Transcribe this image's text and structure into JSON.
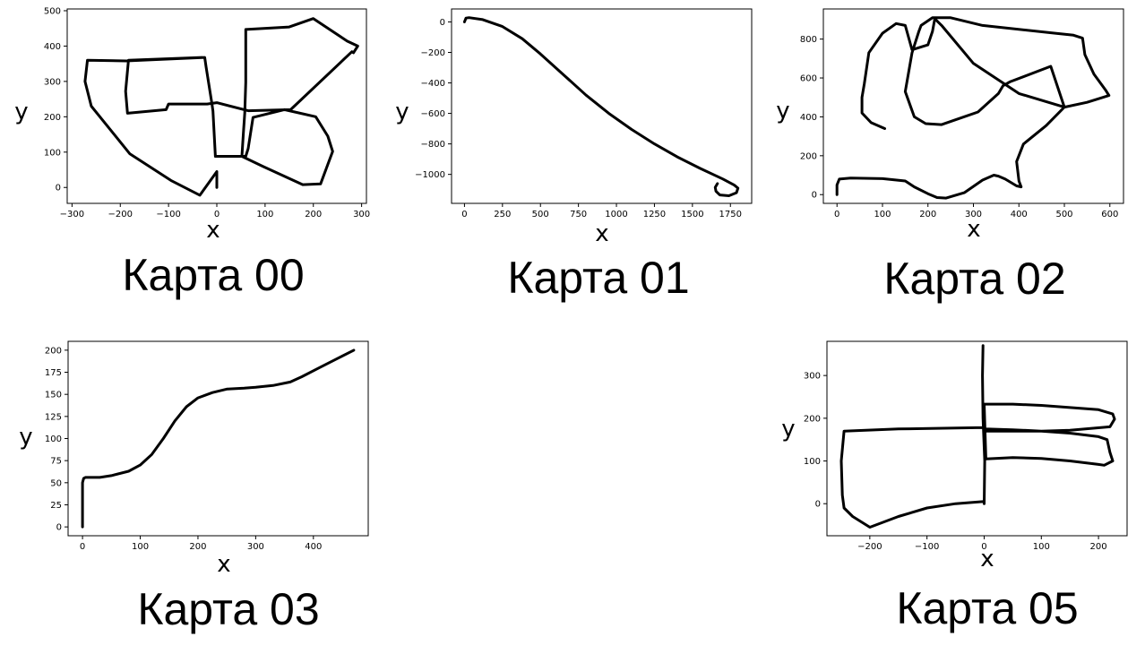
{
  "figure": {
    "background": "#ffffff",
    "line_color": "#000000"
  },
  "chart_data": [
    {
      "type": "line",
      "title": "Карта 00",
      "xlabel": "x",
      "ylabel": "y",
      "xlim": [
        -310,
        310
      ],
      "ylim": [
        -45,
        505
      ],
      "xticks": [
        -300,
        -200,
        -100,
        0,
        100,
        200,
        300
      ],
      "xtick_labels": [
        "−300",
        "−200",
        "−100",
        "0",
        "100",
        "200",
        "300"
      ],
      "yticks": [
        0,
        100,
        200,
        300,
        400,
        500
      ],
      "ytick_labels": [
        "0",
        "100",
        "200",
        "300",
        "400",
        "500"
      ],
      "grid": false,
      "series": [
        {
          "x": [
            0,
            0,
            -35,
            -95,
            -180,
            -260,
            -273,
            -268,
            -188,
            -25,
            -22,
            -10,
            -8,
            -3,
            60,
            65,
            75,
            140,
            205,
            230,
            240,
            215,
            178,
            95,
            52,
            55,
            58,
            60,
            60,
            150,
            200,
            270,
            292,
            283,
            280,
            153,
            65,
            0,
            0,
            -20,
            -100,
            -105,
            -185,
            -189,
            -183,
            -30
          ],
          "y": [
            0,
            45,
            -22,
            20,
            95,
            230,
            300,
            360,
            358,
            368,
            340,
            236,
            216,
            88,
            88,
            110,
            198,
            220,
            200,
            145,
            102,
            10,
            8,
            60,
            88,
            152,
            211,
            297,
            447,
            454,
            478,
            414,
            400,
            381,
            384,
            220,
            217,
            240,
            240,
            236,
            236,
            220,
            210,
            272,
            360,
            368
          ]
        }
      ]
    },
    {
      "type": "line",
      "title": "Карта 01",
      "xlabel": "x",
      "ylabel": "y",
      "xlim": [
        -85,
        1890
      ],
      "ylim": [
        -1190,
        85
      ],
      "xticks": [
        0,
        250,
        500,
        750,
        1000,
        1250,
        1500,
        1750
      ],
      "xtick_labels": [
        "0",
        "250",
        "500",
        "750",
        "1000",
        "1250",
        "1500",
        "1750"
      ],
      "yticks": [
        -1000,
        -800,
        -600,
        -400,
        -200,
        0
      ],
      "ytick_labels": [
        "−1000",
        "−800",
        "−600",
        "−400",
        "−200",
        "0"
      ],
      "grid": false,
      "series": [
        {
          "x": [
            0,
            10,
            30,
            120,
            250,
            380,
            500,
            650,
            800,
            950,
            1100,
            1250,
            1400,
            1550,
            1700,
            1775,
            1800,
            1790,
            1740,
            1680,
            1655,
            1650,
            1665
          ],
          "y": [
            0,
            25,
            28,
            15,
            -30,
            -110,
            -210,
            -345,
            -480,
            -600,
            -705,
            -800,
            -885,
            -960,
            -1030,
            -1070,
            -1090,
            -1120,
            -1140,
            -1135,
            -1110,
            -1085,
            -1060
          ]
        }
      ]
    },
    {
      "type": "line",
      "title": "Карта 02",
      "xlabel": "x",
      "ylabel": "y",
      "xlim": [
        -30,
        630
      ],
      "ylim": [
        -45,
        955
      ],
      "xticks": [
        0,
        100,
        200,
        300,
        400,
        500,
        600
      ],
      "xtick_labels": [
        "0",
        "100",
        "200",
        "300",
        "400",
        "500",
        "600"
      ],
      "yticks": [
        0,
        200,
        400,
        600,
        800
      ],
      "ytick_labels": [
        "0",
        "200",
        "400",
        "600",
        "800"
      ],
      "grid": false,
      "series": [
        {
          "x": [
            0,
            0,
            5,
            30,
            100,
            150,
            170,
            200,
            220,
            240,
            280,
            320,
            345,
            355,
            370,
            395,
            405,
            400,
            395,
            410,
            460,
            500,
            550,
            598,
            590,
            565,
            545,
            540,
            520,
            480,
            320,
            250,
            210,
            185,
            180,
            165,
            150,
            170,
            195,
            230,
            310,
            355,
            365,
            380,
            470,
            500,
            400,
            300,
            230,
            215,
            210,
            200,
            165,
            150,
            130,
            100,
            70,
            60,
            55,
            55,
            75,
            105
          ],
          "y": [
            0,
            50,
            80,
            85,
            82,
            70,
            40,
            5,
            -15,
            -18,
            10,
            75,
            100,
            95,
            80,
            45,
            40,
            70,
            170,
            260,
            355,
            450,
            475,
            510,
            540,
            620,
            720,
            805,
            820,
            830,
            870,
            910,
            910,
            870,
            840,
            730,
            530,
            400,
            365,
            360,
            425,
            520,
            560,
            580,
            660,
            450,
            520,
            675,
            870,
            905,
            840,
            770,
            745,
            870,
            880,
            830,
            730,
            570,
            500,
            420,
            370,
            340
          ]
        }
      ]
    },
    {
      "type": "line",
      "title": "Карта 03",
      "xlabel": "x",
      "ylabel": "y",
      "xlim": [
        -25,
        495
      ],
      "ylim": [
        -10,
        210
      ],
      "xticks": [
        0,
        100,
        200,
        300,
        400
      ],
      "xtick_labels": [
        "0",
        "100",
        "200",
        "300",
        "400"
      ],
      "yticks": [
        0,
        25,
        50,
        75,
        100,
        125,
        150,
        175,
        200
      ],
      "ytick_labels": [
        "0",
        "25",
        "50",
        "75",
        "100",
        "125",
        "150",
        "175",
        "200"
      ],
      "grid": false,
      "series": [
        {
          "x": [
            0,
            0,
            2,
            5,
            10,
            30,
            50,
            80,
            100,
            120,
            140,
            160,
            180,
            200,
            225,
            250,
            280,
            300,
            330,
            360,
            380,
            410,
            440,
            470
          ],
          "y": [
            0,
            50,
            55,
            56,
            56,
            56,
            58,
            63,
            70,
            82,
            100,
            120,
            136,
            146,
            152,
            156,
            157,
            158,
            160,
            164,
            170,
            180,
            190,
            200
          ]
        }
      ]
    },
    {
      "type": "line",
      "title": "Карта 05",
      "xlabel": "x",
      "ylabel": "y",
      "xlim": [
        -275,
        250
      ],
      "ylim": [
        -75,
        380
      ],
      "xticks": [
        -200,
        -100,
        0,
        100,
        200
      ],
      "xtick_labels": [
        "−200",
        "−100",
        "0",
        "100",
        "200"
      ],
      "yticks": [
        0,
        100,
        200,
        300
      ],
      "ytick_labels": [
        "0",
        "100",
        "200",
        "300"
      ],
      "grid": false,
      "series": [
        {
          "x": [
            -2,
            -3,
            -2,
            1,
            0,
            0,
            -50,
            -100,
            -150,
            -200,
            -230,
            -245,
            -248,
            -250,
            -245,
            -150,
            -2,
            2,
            50,
            100,
            150,
            200,
            215,
            220,
            225,
            210,
            200,
            150,
            100,
            50,
            3,
            0,
            50,
            100,
            150,
            200,
            225,
            228,
            220,
            150,
            100,
            50,
            2
          ],
          "y": [
            370,
            300,
            200,
            100,
            0,
            5,
            0,
            -10,
            -30,
            -55,
            -30,
            -10,
            20,
            100,
            170,
            175,
            178,
            175,
            173,
            170,
            165,
            157,
            150,
            120,
            100,
            90,
            92,
            100,
            106,
            108,
            105,
            233,
            233,
            230,
            225,
            220,
            210,
            198,
            180,
            172,
            170,
            170,
            170
          ]
        }
      ]
    }
  ]
}
